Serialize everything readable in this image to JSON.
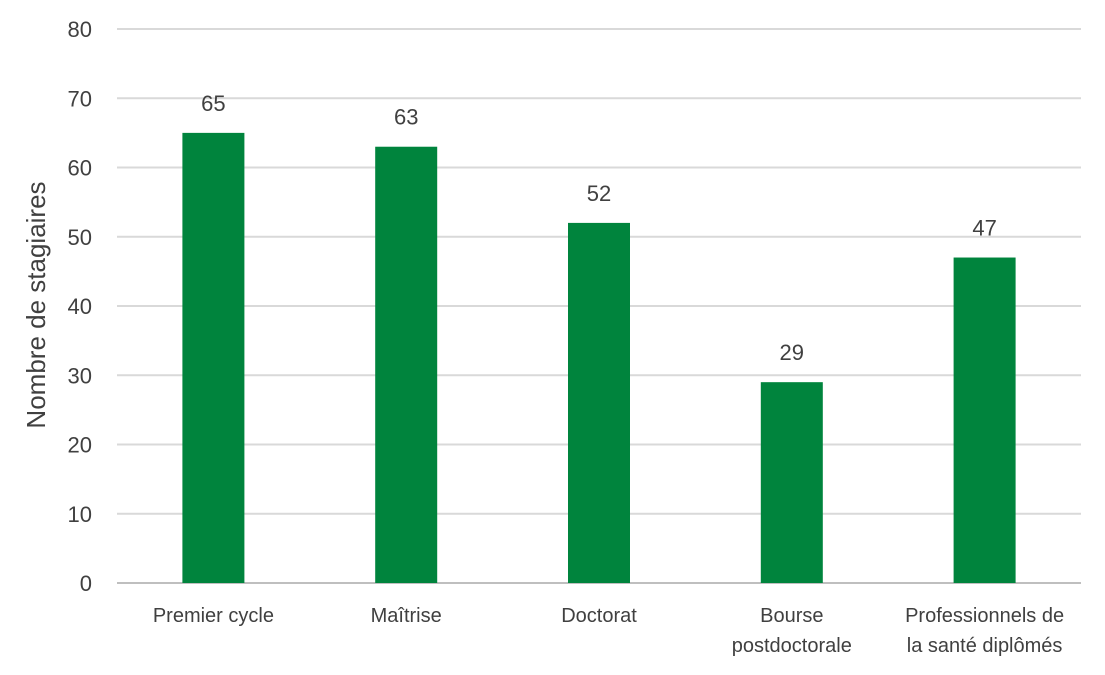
{
  "chart_data": {
    "type": "bar",
    "title": "",
    "xlabel": "",
    "ylabel": "Nombre de stagiaires",
    "ylim": [
      0,
      80
    ],
    "yticks": [
      0,
      10,
      20,
      30,
      40,
      50,
      60,
      70,
      80
    ],
    "grid": true,
    "legend": "none",
    "bar_color": "#00843D",
    "categories": [
      [
        "Premier cycle"
      ],
      [
        "Maîtrise"
      ],
      [
        "Doctorat"
      ],
      [
        "Bourse",
        "postdoctorale"
      ],
      [
        "Professionnels de",
        "la santé diplômés"
      ]
    ],
    "values": [
      65,
      63,
      52,
      29,
      47
    ],
    "data_labels": [
      "65",
      "63",
      "52",
      "29",
      "47"
    ]
  }
}
